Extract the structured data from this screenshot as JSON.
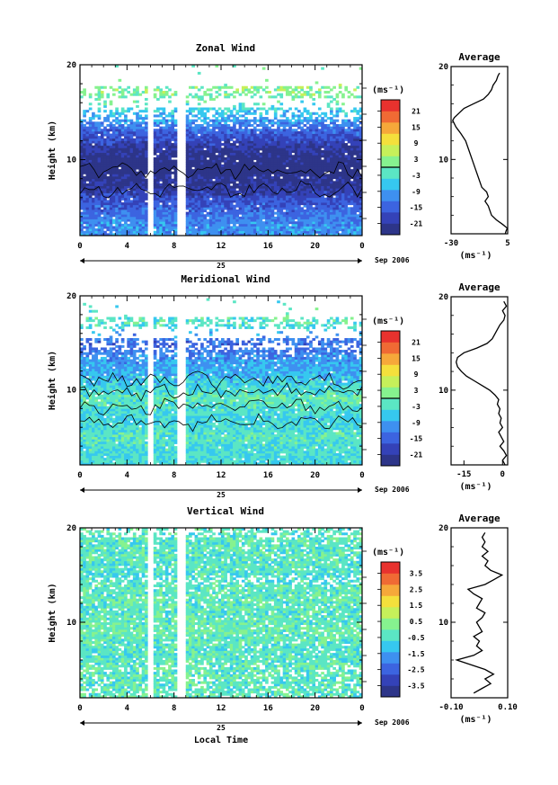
{
  "chart_data": [
    {
      "type": "heatmap",
      "title": "Zonal Wind",
      "ylabel": "Height (km)",
      "xlabel": "",
      "x_ticks": [
        "0",
        "4",
        "8",
        "12",
        "16",
        "20",
        "0"
      ],
      "y_ticks": [
        "20",
        "10"
      ],
      "xlim": [
        0,
        24
      ],
      "ylim": [
        2,
        20
      ],
      "date_day": "25",
      "date_label": "Sep 2006",
      "colorbar": {
        "unit": "(ms⁻¹)",
        "ticks": [
          "21",
          "15",
          "9",
          "3",
          "-3",
          "-9",
          "-15",
          "-21"
        ],
        "zero_line_value": 0
      },
      "height_profile": [
        {
          "z": 3,
          "v": -10
        },
        {
          "z": 5,
          "v": -14
        },
        {
          "z": 7,
          "v": -20
        },
        {
          "z": 9,
          "v": -24
        },
        {
          "z": 11,
          "v": -21
        },
        {
          "z": 13,
          "v": -14
        },
        {
          "z": 15,
          "v": -6
        },
        {
          "z": 17,
          "v": 2
        }
      ],
      "average_profile": {
        "title": "Average",
        "xlabel": "(ms⁻¹)",
        "x_ticks": [
          "-30",
          "5"
        ],
        "xlim": [
          -30,
          5
        ],
        "y_ticks": [
          "20",
          "10"
        ],
        "ylim": [
          2,
          20
        ],
        "points": [
          [
            3.5,
            2
          ],
          [
            4.0,
            2.3
          ],
          [
            4.8,
            2.6
          ],
          [
            2.0,
            3.0
          ],
          [
            -2.0,
            3.5
          ],
          [
            -5.0,
            4.0
          ],
          [
            -7.0,
            5.0
          ],
          [
            -9.0,
            5.5
          ],
          [
            -7.0,
            6.0
          ],
          [
            -8.0,
            6.5
          ],
          [
            -11.0,
            7.0
          ],
          [
            -13.0,
            8.0
          ],
          [
            -15.0,
            9.0
          ],
          [
            -17.0,
            10.0
          ],
          [
            -19.0,
            11.0
          ],
          [
            -21.0,
            12.0
          ],
          [
            -24.0,
            12.8
          ],
          [
            -27.0,
            13.5
          ],
          [
            -29.0,
            14.2
          ],
          [
            -28.0,
            14.5
          ],
          [
            -25.0,
            15.0
          ],
          [
            -22.0,
            15.5
          ],
          [
            -16.0,
            16.0
          ],
          [
            -10.0,
            16.5
          ],
          [
            -7.0,
            17.0
          ],
          [
            -5.0,
            17.5
          ],
          [
            -4.0,
            18.0
          ],
          [
            -2.0,
            18.5
          ],
          [
            -1.0,
            19.0
          ],
          [
            0.0,
            19.3
          ]
        ]
      }
    },
    {
      "type": "heatmap",
      "title": "Meridional Wind",
      "ylabel": "Height (km)",
      "xlabel": "",
      "x_ticks": [
        "0",
        "4",
        "8",
        "12",
        "16",
        "20",
        "0"
      ],
      "y_ticks": [
        "20",
        "10"
      ],
      "xlim": [
        0,
        24
      ],
      "ylim": [
        2,
        20
      ],
      "date_day": "25",
      "date_label": "Sep 2006",
      "colorbar": {
        "unit": "(ms⁻¹)",
        "ticks": [
          "21",
          "15",
          "9",
          "3",
          "-3",
          "-9",
          "-15",
          "-21"
        ],
        "zero_line_value": 0
      },
      "height_profile": [
        {
          "z": 3,
          "v": -4
        },
        {
          "z": 5,
          "v": -2
        },
        {
          "z": 7,
          "v": -5
        },
        {
          "z": 9,
          "v": -1
        },
        {
          "z": 11,
          "v": -6
        },
        {
          "z": 13,
          "v": -9
        },
        {
          "z": 15,
          "v": -14
        },
        {
          "z": 17,
          "v": -2
        }
      ],
      "average_profile": {
        "title": "Average",
        "xlabel": "(ms⁻¹)",
        "x_ticks": [
          "-15",
          "0"
        ],
        "xlim": [
          -20,
          2
        ],
        "y_ticks": [
          "20",
          "10"
        ],
        "ylim": [
          2,
          20
        ],
        "points": [
          [
            1.0,
            2
          ],
          [
            0.0,
            2.5
          ],
          [
            1.5,
            3.0
          ],
          [
            0.5,
            3.5
          ],
          [
            -1.0,
            4.0
          ],
          [
            0.5,
            4.5
          ],
          [
            -0.5,
            5.0
          ],
          [
            -1.5,
            5.5
          ],
          [
            0.0,
            6.0
          ],
          [
            -1.0,
            6.5
          ],
          [
            -0.5,
            7.0
          ],
          [
            -1.5,
            7.5
          ],
          [
            -1.0,
            8.0
          ],
          [
            -2.0,
            8.5
          ],
          [
            -1.5,
            9.0
          ],
          [
            -3.0,
            9.5
          ],
          [
            -5.0,
            10.0
          ],
          [
            -8.0,
            10.5
          ],
          [
            -11.0,
            11.0
          ],
          [
            -14.0,
            11.5
          ],
          [
            -16.0,
            12.0
          ],
          [
            -17.5,
            12.5
          ],
          [
            -18.0,
            13.0
          ],
          [
            -17.5,
            13.5
          ],
          [
            -15.0,
            14.0
          ],
          [
            -10.0,
            14.5
          ],
          [
            -6.0,
            15.0
          ],
          [
            -4.0,
            15.5
          ],
          [
            -3.0,
            16.0
          ],
          [
            -2.0,
            16.5
          ],
          [
            -1.0,
            17.0
          ],
          [
            0.5,
            17.5
          ],
          [
            1.0,
            18.0
          ],
          [
            0.0,
            18.5
          ],
          [
            1.5,
            19.0
          ],
          [
            0.5,
            19.5
          ]
        ]
      }
    },
    {
      "type": "heatmap",
      "title": "Vertical Wind",
      "ylabel": "Height (km)",
      "xlabel": "Local Time",
      "x_ticks": [
        "0",
        "4",
        "8",
        "12",
        "16",
        "20",
        "0"
      ],
      "y_ticks": [
        "20",
        "10"
      ],
      "xlim": [
        0,
        24
      ],
      "ylim": [
        2,
        20
      ],
      "date_day": "25",
      "date_label": "Sep 2006",
      "colorbar": {
        "unit": "(ms⁻¹)",
        "ticks": [
          "3.5",
          "2.5",
          "1.5",
          "0.5",
          "-0.5",
          "-1.5",
          "-2.5",
          "-3.5"
        ],
        "zero_line_value": null
      },
      "height_profile": [
        {
          "z": 3,
          "v": -0.3
        },
        {
          "z": 5,
          "v": -0.2
        },
        {
          "z": 7,
          "v": -0.4
        },
        {
          "z": 9,
          "v": -0.1
        },
        {
          "z": 11,
          "v": -0.3
        },
        {
          "z": 13,
          "v": -0.2
        },
        {
          "z": 15,
          "v": -0.5
        },
        {
          "z": 17,
          "v": -0.3
        }
      ],
      "average_profile": {
        "title": "Average",
        "xlabel": "(ms⁻¹)",
        "x_ticks": [
          "-0.10",
          "0.10"
        ],
        "xlim": [
          -0.1,
          0.1
        ],
        "y_ticks": [
          "20",
          "10"
        ],
        "ylim": [
          2,
          20
        ],
        "points": [
          [
            -0.02,
            2.5
          ],
          [
            0.01,
            3.0
          ],
          [
            0.04,
            3.5
          ],
          [
            0.02,
            4.0
          ],
          [
            0.05,
            4.5
          ],
          [
            0.02,
            5.0
          ],
          [
            -0.03,
            5.5
          ],
          [
            -0.08,
            6.0
          ],
          [
            -0.02,
            6.5
          ],
          [
            0.01,
            7.0
          ],
          [
            -0.01,
            7.5
          ],
          [
            0.0,
            8.0
          ],
          [
            -0.02,
            8.5
          ],
          [
            0.01,
            9.0
          ],
          [
            0.0,
            9.5
          ],
          [
            -0.01,
            10.0
          ],
          [
            0.01,
            10.5
          ],
          [
            0.02,
            11.0
          ],
          [
            -0.01,
            11.5
          ],
          [
            0.0,
            12.0
          ],
          [
            0.01,
            12.5
          ],
          [
            -0.02,
            13.0
          ],
          [
            -0.04,
            13.5
          ],
          [
            0.02,
            14.0
          ],
          [
            0.05,
            14.5
          ],
          [
            0.08,
            15.0
          ],
          [
            0.04,
            15.5
          ],
          [
            0.02,
            16.0
          ],
          [
            0.03,
            16.5
          ],
          [
            0.01,
            17.0
          ],
          [
            0.03,
            17.5
          ],
          [
            0.01,
            18.0
          ],
          [
            0.02,
            18.5
          ],
          [
            0.01,
            19.0
          ],
          [
            0.02,
            19.5
          ]
        ]
      }
    }
  ],
  "colorscale": [
    "#2d3589",
    "#3442b8",
    "#3c64e0",
    "#3e90f0",
    "#36c8ef",
    "#5be6c4",
    "#86f28f",
    "#c6f05a",
    "#f4e03c",
    "#f6a83a",
    "#f06a34",
    "#e8322e"
  ]
}
